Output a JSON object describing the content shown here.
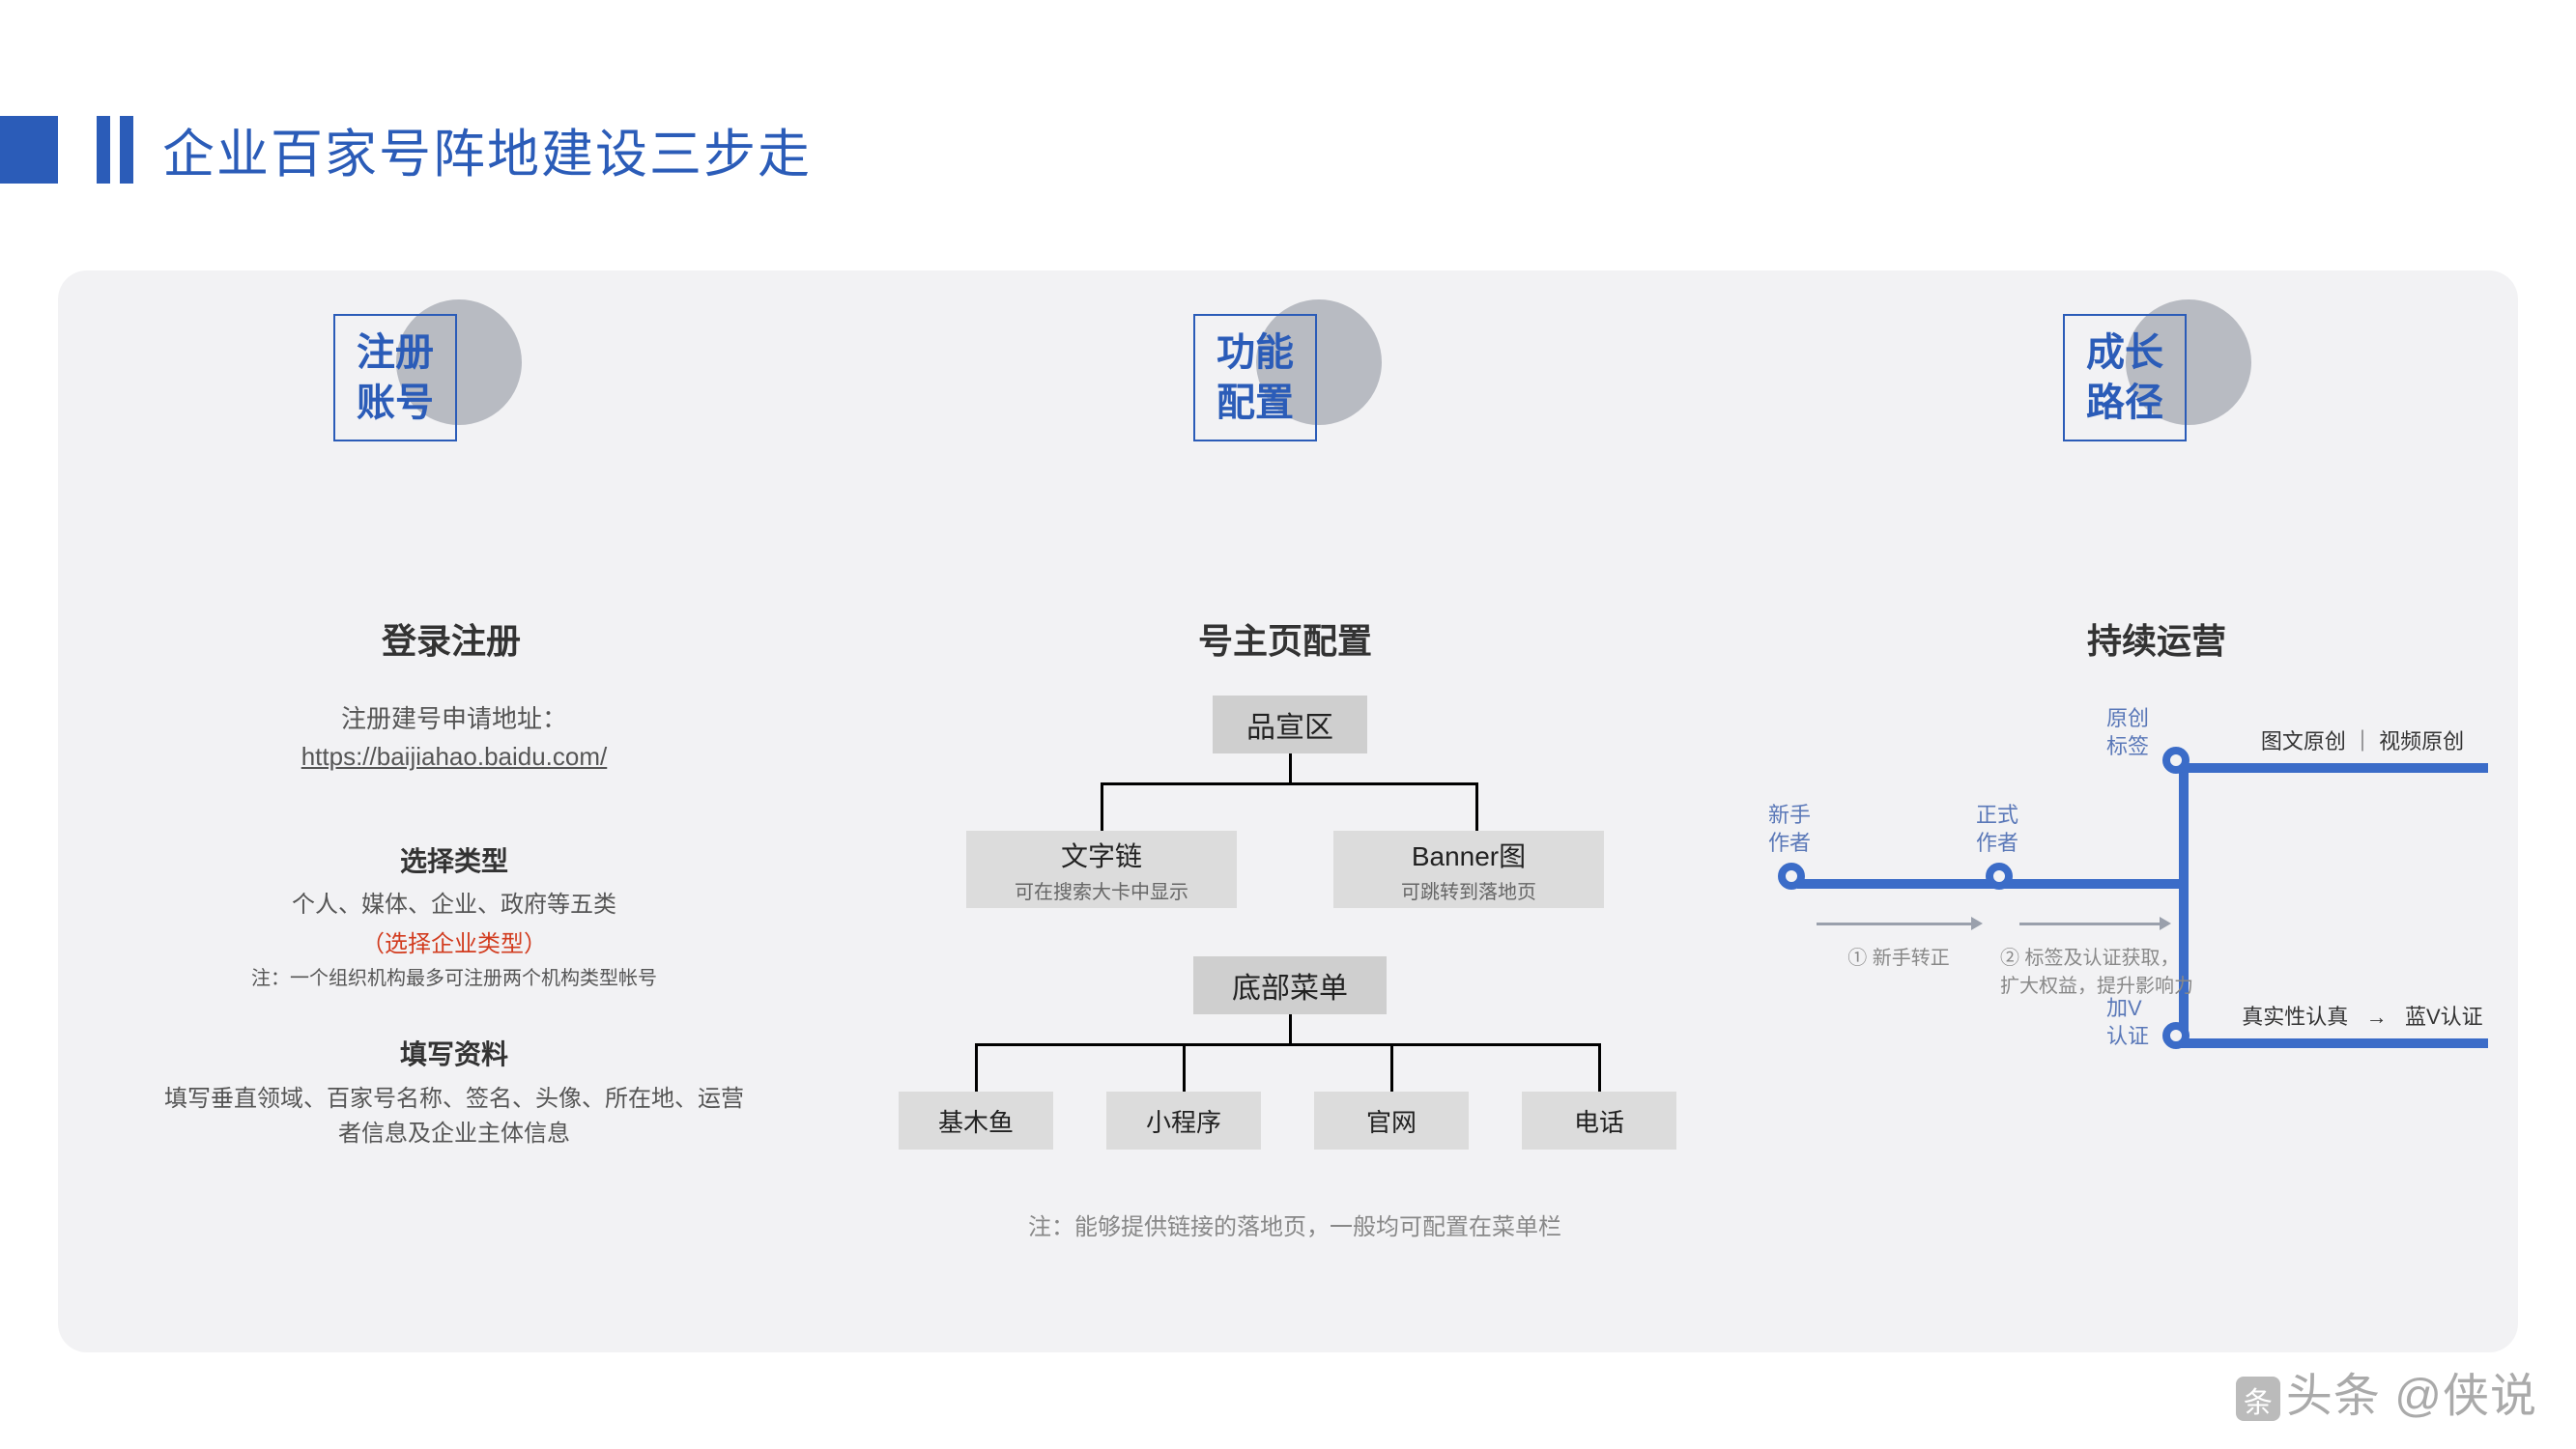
{
  "colors": {
    "primary": "#2b5cb8",
    "panel_bg": "#f2f2f4",
    "circle": "#b8bbc2",
    "box_bg": "#cfcfcf",
    "text_dark": "#333333",
    "text_gray": "#555555",
    "text_light": "#888888",
    "red": "#d23c1f",
    "path_blue": "#3b6cc8",
    "path_gray": "#9aa0ac"
  },
  "title": "企业百家号阵地建设三步走",
  "columns": {
    "c1": {
      "head_line1": "注册",
      "head_line2": "账号",
      "subtitle": "登录注册",
      "link_label": "注册建号申请地址：",
      "link_url": "https://baijiahao.baidu.com/",
      "type_heading": "选择类型",
      "type_desc": "个人、媒体、企业、政府等五类",
      "type_red": "（选择企业类型）",
      "type_note": "注：一个组织机构最多可注册两个机构类型帐号",
      "fill_heading": "填写资料",
      "fill_desc": "填写垂直领域、百家号名称、签名、头像、所在地、运营者信息及企业主体信息"
    },
    "c2": {
      "head_line1": "功能",
      "head_line2": "配置",
      "subtitle": "号主页配置",
      "box_brand": "品宣区",
      "box_textlink_t": "文字链",
      "box_textlink_s": "可在搜索大卡中显示",
      "box_banner_t": "Banner图",
      "box_banner_s": "可跳转到落地页",
      "box_menu": "底部菜单",
      "menu_items": [
        "基木鱼",
        "小程序",
        "官网",
        "电话"
      ],
      "note": "注：能够提供链接的落地页，一般均可配置在菜单栏"
    },
    "c3": {
      "head_line1": "成长",
      "head_line2": "路径",
      "subtitle": "持续运营",
      "node1": "新手\n作者",
      "node2": "正式\n作者",
      "node3": "原创\n标签",
      "node4": "加V\n认证",
      "step1": "① 新手转正",
      "step2": "② 标签及认证获取，\n扩大权益，提升影响力",
      "branch_top": "图文原创 ｜ 视频原创",
      "branch_bottom_left": "真实性认真",
      "branch_bottom_arrow": "→",
      "branch_bottom_right": "蓝V认证"
    }
  },
  "watermark": "头条 @侠说"
}
